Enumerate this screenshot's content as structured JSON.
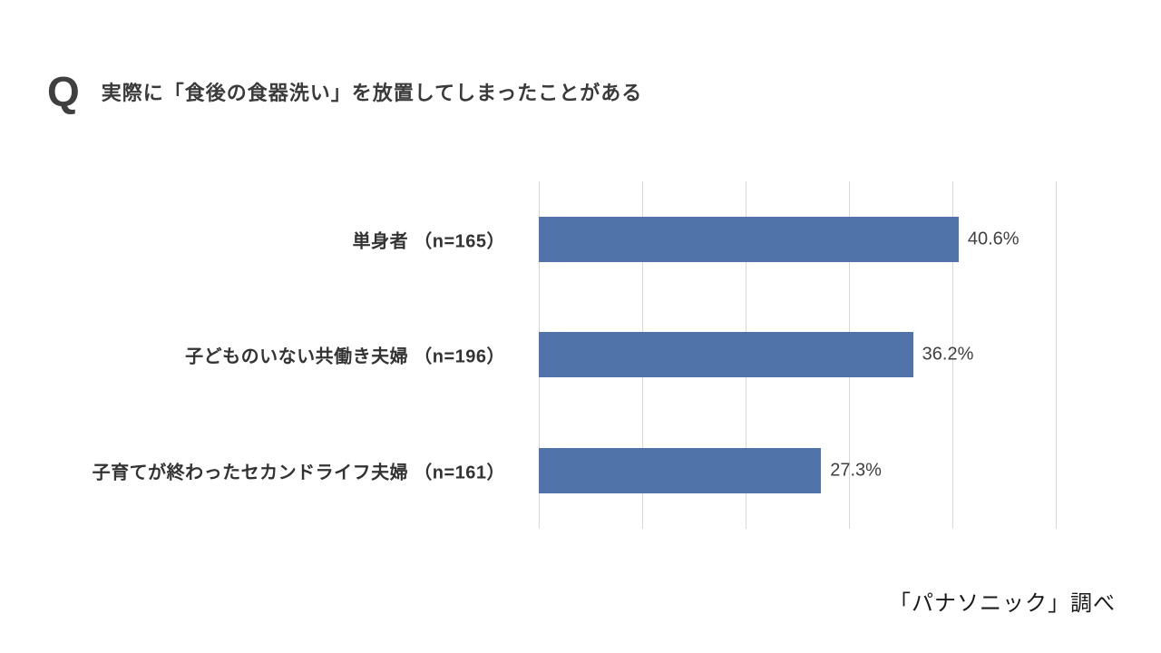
{
  "header": {
    "q_mark": "Q",
    "title": "実際に「食後の食器洗い」を放置してしまったことがある"
  },
  "footer": {
    "source": "「パナソニック」調べ"
  },
  "colors": {
    "bar": "#5073aa",
    "gridline": "#d9d9d9",
    "title_text": "#3a3a3a",
    "category_text": "#333333",
    "value_text": "#404040",
    "footer_text": "#1a1a1a"
  },
  "chart_data": {
    "type": "bar",
    "orientation": "horizontal",
    "title": "実際に「食後の食器洗い」を放置してしまったことがある",
    "categories": [
      "単身者 （n=165）",
      "子どものいない共働き夫婦 （n=196）",
      "子育てが終わったセカンドライフ夫婦 （n=161）"
    ],
    "values": [
      40.6,
      36.2,
      27.3
    ],
    "value_labels": [
      "40.6%",
      "36.2%",
      "27.3%"
    ],
    "xlim": [
      0,
      50
    ],
    "grid": true,
    "gridline_interval": 10,
    "legend": "none",
    "annotations": "values shown at end of each bar",
    "source": "「パナソニック」調べ"
  }
}
